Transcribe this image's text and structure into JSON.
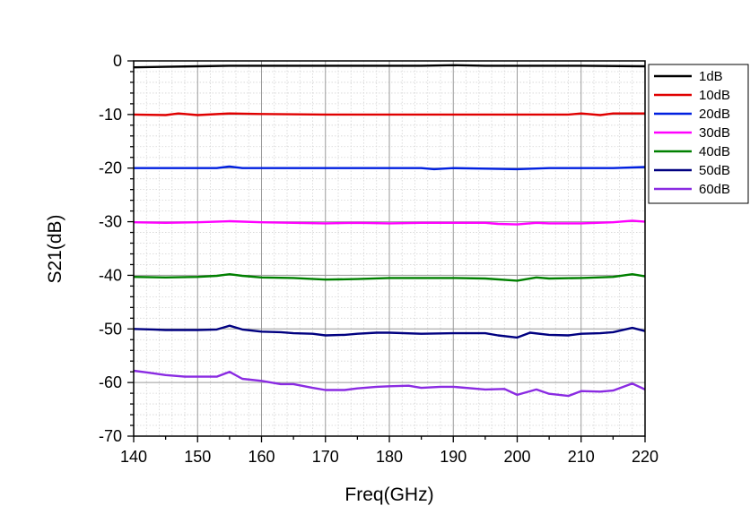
{
  "chart_data": {
    "type": "line",
    "title": "",
    "xlabel": "Freq(GHz)",
    "ylabel": "S21(dB)",
    "xlim": [
      140,
      220
    ],
    "ylim": [
      -70,
      0
    ],
    "xticks": [
      140,
      150,
      160,
      170,
      180,
      190,
      200,
      210,
      220
    ],
    "yticks": [
      0,
      -10,
      -20,
      -30,
      -40,
      -50,
      -60,
      -70
    ],
    "grid": true,
    "legend_position": "top-right",
    "series": [
      {
        "name": "1dB",
        "color": "#000000",
        "x": [
          140,
          145,
          150,
          155,
          160,
          170,
          180,
          185,
          190,
          195,
          200,
          210,
          220
        ],
        "y": [
          -1.2,
          -1.1,
          -1.0,
          -0.9,
          -0.9,
          -0.9,
          -0.9,
          -0.9,
          -0.8,
          -0.9,
          -0.9,
          -0.9,
          -1.0
        ]
      },
      {
        "name": "10dB",
        "color": "#e00000",
        "x": [
          140,
          145,
          147,
          150,
          155,
          160,
          170,
          180,
          190,
          200,
          205,
          208,
          210,
          213,
          215,
          220
        ],
        "y": [
          -10.0,
          -10.1,
          -9.8,
          -10.1,
          -9.8,
          -9.9,
          -10.0,
          -10.0,
          -10.0,
          -10.0,
          -10.0,
          -10.0,
          -9.8,
          -10.1,
          -9.8,
          -9.8
        ]
      },
      {
        "name": "20dB",
        "color": "#0020e0",
        "x": [
          140,
          150,
          153,
          155,
          157,
          160,
          170,
          180,
          185,
          187,
          190,
          195,
          200,
          205,
          210,
          215,
          220
        ],
        "y": [
          -20.0,
          -20.0,
          -20.0,
          -19.7,
          -20.0,
          -20.0,
          -20.0,
          -20.0,
          -20.0,
          -20.2,
          -20.0,
          -20.1,
          -20.2,
          -20.0,
          -20.0,
          -20.0,
          -19.8
        ]
      },
      {
        "name": "30dB",
        "color": "#ff00ff",
        "x": [
          140,
          145,
          150,
          155,
          160,
          165,
          170,
          175,
          180,
          185,
          190,
          195,
          197,
          200,
          203,
          205,
          210,
          215,
          218,
          220
        ],
        "y": [
          -30.1,
          -30.2,
          -30.1,
          -29.9,
          -30.1,
          -30.2,
          -30.3,
          -30.2,
          -30.3,
          -30.2,
          -30.2,
          -30.2,
          -30.4,
          -30.5,
          -30.2,
          -30.3,
          -30.3,
          -30.1,
          -29.8,
          -30.0
        ]
      },
      {
        "name": "40dB",
        "color": "#008000",
        "x": [
          140,
          145,
          150,
          153,
          155,
          157,
          160,
          165,
          170,
          175,
          180,
          185,
          190,
          195,
          200,
          203,
          205,
          210,
          215,
          218,
          220
        ],
        "y": [
          -40.3,
          -40.4,
          -40.3,
          -40.1,
          -39.8,
          -40.1,
          -40.4,
          -40.5,
          -40.8,
          -40.7,
          -40.5,
          -40.5,
          -40.5,
          -40.6,
          -41.0,
          -40.4,
          -40.6,
          -40.5,
          -40.3,
          -39.8,
          -40.2
        ]
      },
      {
        "name": "50dB",
        "color": "#000080",
        "x": [
          140,
          143,
          145,
          148,
          150,
          153,
          155,
          157,
          160,
          163,
          165,
          168,
          170,
          173,
          175,
          178,
          180,
          185,
          190,
          195,
          197,
          200,
          202,
          205,
          208,
          210,
          213,
          215,
          218,
          220
        ],
        "y": [
          -50.0,
          -50.1,
          -50.2,
          -50.2,
          -50.2,
          -50.1,
          -49.4,
          -50.1,
          -50.5,
          -50.6,
          -50.8,
          -50.9,
          -51.2,
          -51.1,
          -50.9,
          -50.7,
          -50.7,
          -50.9,
          -50.8,
          -50.8,
          -51.2,
          -51.6,
          -50.7,
          -51.1,
          -51.2,
          -50.9,
          -50.8,
          -50.6,
          -49.8,
          -50.4
        ]
      },
      {
        "name": "60dB",
        "color": "#8a2be2",
        "x": [
          140,
          142,
          145,
          148,
          150,
          153,
          155,
          157,
          160,
          163,
          165,
          168,
          170,
          173,
          175,
          178,
          180,
          183,
          185,
          188,
          190,
          195,
          198,
          200,
          203,
          205,
          208,
          210,
          213,
          215,
          218,
          220
        ],
        "y": [
          -57.8,
          -58.1,
          -58.6,
          -58.9,
          -58.9,
          -58.9,
          -58.0,
          -59.3,
          -59.7,
          -60.3,
          -60.3,
          -61.0,
          -61.4,
          -61.4,
          -61.1,
          -60.8,
          -60.7,
          -60.6,
          -61.0,
          -60.8,
          -60.8,
          -61.3,
          -61.2,
          -62.3,
          -61.3,
          -62.1,
          -62.5,
          -61.6,
          -61.7,
          -61.5,
          -60.2,
          -61.3
        ]
      }
    ]
  }
}
